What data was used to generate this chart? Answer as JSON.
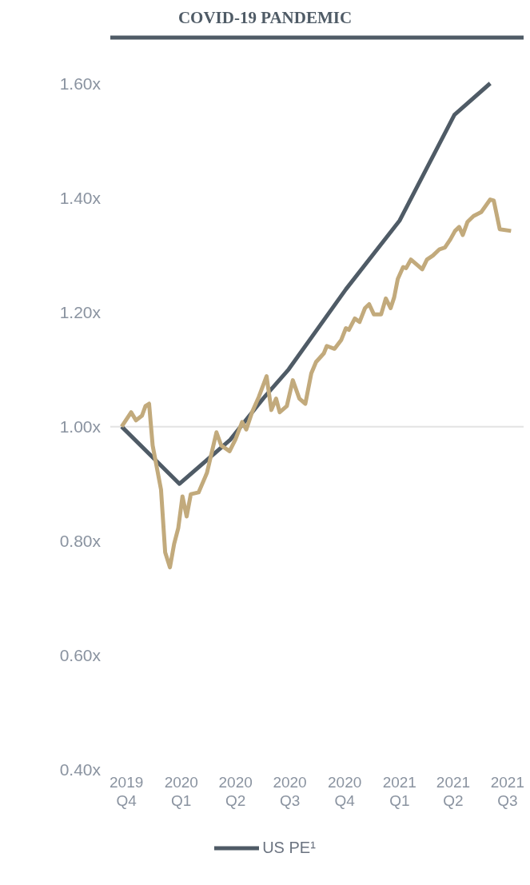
{
  "chart_data": {
    "type": "line",
    "title": "COVID-19 PANDEMIC",
    "xlim": [
      "2019-09-04",
      "2021-07-28"
    ],
    "xticks": [
      {
        "value": "2019-10-01",
        "label": "2019 Q4"
      },
      {
        "value": "2020-01-01",
        "label": "2020 Q1"
      },
      {
        "value": "2020-04-01",
        "label": "2020 Q2"
      },
      {
        "value": "2020-07-01",
        "label": "2020 Q3"
      },
      {
        "value": "2020-10-01",
        "label": "2020 Q4"
      },
      {
        "value": "2021-01-01",
        "label": "2021 Q1"
      },
      {
        "value": "2021-04-01",
        "label": "2021 Q2"
      },
      {
        "value": "2021-07-01",
        "label": "2021 Q3"
      }
    ],
    "ylim": [
      0.4,
      1.68
    ],
    "yticks": [
      {
        "value": 0.4,
        "label": "0.40x"
      },
      {
        "value": 0.6,
        "label": "0.60x"
      },
      {
        "value": 0.8,
        "label": "0.80x"
      },
      {
        "value": 1.0,
        "label": "1.00x"
      },
      {
        "value": 1.2,
        "label": "1.20x"
      },
      {
        "value": 1.4,
        "label": "1.40x"
      },
      {
        "value": 1.6,
        "label": "1.60x"
      }
    ],
    "grid": false,
    "legend": "bottom",
    "marker": "none",
    "line_style": "solid",
    "ref_lines": [
      {
        "axis": "y",
        "value": 1.0,
        "color": "#e3e3e3"
      }
    ],
    "series": [
      {
        "name": "US PE¹",
        "color": "#4f5b66",
        "x": [
          "2019-09-23",
          "2019-12-29",
          "2020-03-23",
          "2020-05-18",
          "2020-06-29",
          "2020-10-03",
          "2021-01-01",
          "2021-04-03",
          "2021-06-02"
        ],
        "values": [
          1.0,
          0.9,
          0.977,
          1.05,
          1.1,
          1.24,
          1.36,
          1.545,
          1.6
        ]
      },
      {
        "color": "#c2aa7c",
        "x": [
          "2019-09-23",
          "2019-10-09",
          "2019-10-17",
          "2019-10-27",
          "2019-11-02",
          "2019-11-08",
          "2019-11-14",
          "2019-11-28",
          "2019-12-05",
          "2019-12-13",
          "2019-12-20",
          "2019-12-27",
          "2020-01-03",
          "2020-01-10",
          "2020-01-17",
          "2020-01-30",
          "2020-02-13",
          "2020-02-29",
          "2020-03-08",
          "2020-03-22",
          "2020-04-01",
          "2020-04-12",
          "2020-04-19",
          "2020-04-29",
          "2020-05-10",
          "2020-05-23",
          "2020-05-31",
          "2020-06-08",
          "2020-06-14",
          "2020-06-26",
          "2020-07-06",
          "2020-07-17",
          "2020-07-27",
          "2020-08-06",
          "2020-08-14",
          "2020-08-27",
          "2020-09-01",
          "2020-09-14",
          "2020-09-25",
          "2020-10-03",
          "2020-10-08",
          "2020-10-18",
          "2020-10-26",
          "2020-11-04",
          "2020-11-11",
          "2020-11-19",
          "2020-12-01",
          "2020-12-09",
          "2020-12-17",
          "2020-12-23",
          "2020-12-29",
          "2021-01-07",
          "2021-01-12",
          "2021-01-20",
          "2021-01-29",
          "2021-02-08",
          "2021-02-16",
          "2021-02-26",
          "2021-03-09",
          "2021-03-18",
          "2021-03-27",
          "2021-04-04",
          "2021-04-11",
          "2021-04-17",
          "2021-04-25",
          "2021-05-05",
          "2021-05-18",
          "2021-06-02",
          "2021-06-08",
          "2021-06-18",
          "2021-07-07"
        ],
        "values": [
          1.0,
          1.025,
          1.011,
          1.019,
          1.036,
          1.04,
          0.967,
          0.89,
          0.78,
          0.754,
          0.795,
          0.823,
          0.878,
          0.843,
          0.882,
          0.885,
          0.919,
          0.99,
          0.967,
          0.957,
          0.978,
          1.008,
          0.995,
          1.026,
          1.052,
          1.088,
          1.029,
          1.049,
          1.025,
          1.036,
          1.081,
          1.049,
          1.04,
          1.093,
          1.113,
          1.128,
          1.141,
          1.136,
          1.151,
          1.172,
          1.169,
          1.189,
          1.183,
          1.207,
          1.214,
          1.196,
          1.196,
          1.224,
          1.207,
          1.226,
          1.258,
          1.279,
          1.277,
          1.292,
          1.284,
          1.275,
          1.292,
          1.299,
          1.31,
          1.313,
          1.327,
          1.342,
          1.349,
          1.335,
          1.358,
          1.368,
          1.375,
          1.397,
          1.395,
          1.345,
          1.342
        ]
      }
    ]
  }
}
